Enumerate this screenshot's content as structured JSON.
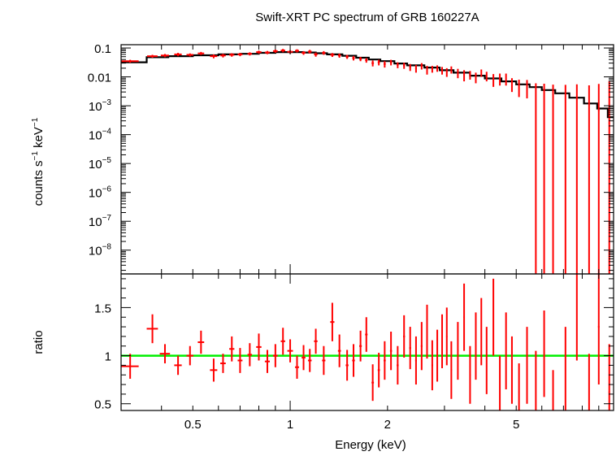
{
  "chart_data": [
    {
      "type": "scatter",
      "panel": "spectrum",
      "title": "Swift-XRT PC spectrum of GRB 160227A",
      "xlabel": "",
      "ylabel_parts": [
        "counts s",
        "−1",
        " keV",
        "−1"
      ],
      "xscale": "log",
      "yscale": "log",
      "xlim": [
        0.3,
        10.0
      ],
      "ylim": [
        1.5e-09,
        0.13
      ],
      "x_ticks": [
        0.5,
        1,
        2,
        5
      ],
      "y_tick_labels": [
        {
          "value": 0.1,
          "mantissa": "0.1",
          "exp": ""
        },
        {
          "value": 0.01,
          "mantissa": "0.01",
          "exp": ""
        },
        {
          "value": 0.001,
          "mantissa": "10",
          "exp": "−3"
        },
        {
          "value": 0.0001,
          "mantissa": "10",
          "exp": "−4"
        },
        {
          "value": 1e-05,
          "mantissa": "10",
          "exp": "−5"
        },
        {
          "value": 1e-06,
          "mantissa": "10",
          "exp": "−6"
        },
        {
          "value": 1e-07,
          "mantissa": "10",
          "exp": "−7"
        },
        {
          "value": 1e-08,
          "mantissa": "10",
          "exp": "−8"
        }
      ],
      "series": [
        {
          "kind": "data",
          "color": "#ff0000",
          "points": [
            [
              0.32,
              0.035,
              0.02,
              0.004
            ],
            [
              0.375,
              0.052,
              0.014,
              0.006
            ],
            [
              0.41,
              0.055,
              0.012,
              0.007
            ],
            [
              0.45,
              0.06,
              0.012,
              0.008
            ],
            [
              0.49,
              0.058,
              0.012,
              0.007
            ],
            [
              0.53,
              0.065,
              0.012,
              0.008
            ],
            [
              0.58,
              0.052,
              0.015,
              0.008
            ],
            [
              0.62,
              0.055,
              0.012,
              0.008
            ],
            [
              0.66,
              0.058,
              0.012,
              0.008
            ],
            [
              0.7,
              0.06,
              0.012,
              0.008
            ],
            [
              0.75,
              0.063,
              0.012,
              0.008
            ],
            [
              0.8,
              0.072,
              0.015,
              0.009
            ],
            [
              0.85,
              0.07,
              0.015,
              0.009
            ],
            [
              0.9,
              0.078,
              0.015,
              0.01
            ],
            [
              0.95,
              0.082,
              0.015,
              0.011
            ],
            [
              1.0,
              0.074,
              0.02,
              0.01
            ],
            [
              1.05,
              0.08,
              0.015,
              0.01
            ],
            [
              1.1,
              0.068,
              0.015,
              0.01
            ],
            [
              1.15,
              0.075,
              0.015,
              0.011
            ],
            [
              1.2,
              0.06,
              0.015,
              0.01
            ],
            [
              1.27,
              0.068,
              0.015,
              0.01
            ],
            [
              1.35,
              0.058,
              0.02,
              0.009
            ],
            [
              1.42,
              0.055,
              0.015,
              0.009
            ],
            [
              1.5,
              0.05,
              0.015,
              0.008
            ],
            [
              1.57,
              0.045,
              0.015,
              0.008
            ],
            [
              1.65,
              0.042,
              0.015,
              0.007
            ],
            [
              1.72,
              0.038,
              0.015,
              0.007
            ],
            [
              1.8,
              0.03,
              0.015,
              0.007
            ],
            [
              1.88,
              0.032,
              0.015,
              0.007
            ],
            [
              1.96,
              0.028,
              0.015,
              0.007
            ],
            [
              2.05,
              0.032,
              0.015,
              0.007
            ],
            [
              2.15,
              0.026,
              0.015,
              0.006
            ],
            [
              2.25,
              0.025,
              0.015,
              0.006
            ],
            [
              2.35,
              0.022,
              0.015,
              0.006
            ],
            [
              2.45,
              0.02,
              0.015,
              0.006
            ],
            [
              2.55,
              0.024,
              0.015,
              0.006
            ],
            [
              2.65,
              0.018,
              0.015,
              0.006
            ],
            [
              2.75,
              0.019,
              0.015,
              0.005
            ],
            [
              2.85,
              0.02,
              0.015,
              0.005
            ],
            [
              2.95,
              0.017,
              0.015,
              0.005
            ],
            [
              3.05,
              0.015,
              0.015,
              0.005
            ],
            [
              3.15,
              0.018,
              0.015,
              0.005
            ],
            [
              3.3,
              0.014,
              0.015,
              0.005
            ],
            [
              3.45,
              0.012,
              0.015,
              0.005
            ],
            [
              3.6,
              0.012,
              0.015,
              0.004
            ],
            [
              3.75,
              0.01,
              0.02,
              0.004
            ],
            [
              3.9,
              0.014,
              0.015,
              0.004
            ],
            [
              4.05,
              0.011,
              0.015,
              0.004
            ],
            [
              4.25,
              0.0085,
              0.015,
              0.004
            ],
            [
              4.45,
              0.009,
              0.015,
              0.004
            ],
            [
              4.65,
              0.009,
              0.015,
              0.004
            ],
            [
              4.85,
              0.006,
              0.02,
              0.003
            ],
            [
              5.1,
              0.005,
              0.02,
              0.003
            ],
            [
              5.4,
              0.0048,
              0.02,
              0.003
            ],
            [
              5.75,
              0.003,
              0.02,
              0.003
            ],
            [
              6.1,
              0.0028,
              0.02,
              0.003
            ],
            [
              6.5,
              0.0024,
              0.03,
              0.003
            ],
            [
              7.1,
              0.0013,
              0.03,
              0.004
            ],
            [
              7.7,
              0.0015,
              0.03,
              0.004
            ],
            [
              8.4,
              0.0011,
              0.03,
              0.004
            ],
            [
              9.0,
              0.0007,
              0.05,
              0.005
            ],
            [
              9.7,
              0.00025,
              0.05,
              0.007
            ]
          ]
        },
        {
          "kind": "model",
          "color": "#000000",
          "steps": [
            [
              0.3,
              0.032
            ],
            [
              0.36,
              0.048
            ],
            [
              0.42,
              0.052
            ],
            [
              0.5,
              0.056
            ],
            [
              0.6,
              0.06
            ],
            [
              0.7,
              0.063
            ],
            [
              0.8,
              0.068
            ],
            [
              0.9,
              0.072
            ],
            [
              1.0,
              0.072
            ],
            [
              1.1,
              0.07
            ],
            [
              1.2,
              0.066
            ],
            [
              1.3,
              0.06
            ],
            [
              1.45,
              0.054
            ],
            [
              1.6,
              0.046
            ],
            [
              1.75,
              0.04
            ],
            [
              1.9,
              0.035
            ],
            [
              2.1,
              0.029
            ],
            [
              2.3,
              0.025
            ],
            [
              2.6,
              0.021
            ],
            [
              2.9,
              0.017
            ],
            [
              3.2,
              0.014
            ],
            [
              3.6,
              0.011
            ],
            [
              4.0,
              0.0088
            ],
            [
              4.5,
              0.007
            ],
            [
              5.0,
              0.0055
            ],
            [
              5.5,
              0.0044
            ],
            [
              6.0,
              0.0035
            ],
            [
              6.6,
              0.0027
            ],
            [
              7.3,
              0.0019
            ],
            [
              8.1,
              0.0012
            ],
            [
              8.9,
              0.0008
            ],
            [
              9.6,
              0.0004
            ],
            [
              10.0,
              0.0004
            ]
          ]
        }
      ]
    },
    {
      "type": "scatter",
      "panel": "ratio",
      "title": "",
      "xlabel": "Energy (keV)",
      "ylabel": "ratio",
      "xscale": "log",
      "yscale": "linear",
      "xlim": [
        0.3,
        10.0
      ],
      "ylim": [
        0.43,
        1.85
      ],
      "x_ticks": [
        0.5,
        1,
        2,
        5
      ],
      "x_tick_labels": [
        "0.5",
        "1",
        "2",
        "5"
      ],
      "y_ticks": [
        0.5,
        1,
        1.5
      ],
      "y_tick_labels": [
        "0.5",
        "1",
        "1.5"
      ],
      "reference_line": {
        "y": 1,
        "color": "#00ee00"
      },
      "series": [
        {
          "kind": "data",
          "color": "#ff0000",
          "points": [
            [
              0.32,
              0.89,
              0.02,
              0.13
            ],
            [
              0.375,
              1.28,
              0.015,
              0.15
            ],
            [
              0.41,
              1.02,
              0.015,
              0.1
            ],
            [
              0.45,
              0.9,
              0.012,
              0.1
            ],
            [
              0.49,
              1.0,
              0.012,
              0.1
            ],
            [
              0.53,
              1.14,
              0.012,
              0.12
            ],
            [
              0.58,
              0.85,
              0.015,
              0.12
            ],
            [
              0.62,
              0.92,
              0.012,
              0.1
            ],
            [
              0.66,
              1.07,
              0.012,
              0.13
            ],
            [
              0.7,
              0.95,
              0.012,
              0.13
            ],
            [
              0.75,
              1.01,
              0.012,
              0.12
            ],
            [
              0.8,
              1.09,
              0.015,
              0.14
            ],
            [
              0.85,
              0.94,
              0.015,
              0.12
            ],
            [
              0.9,
              1.0,
              0.015,
              0.12
            ],
            [
              0.95,
              1.15,
              0.015,
              0.14
            ],
            [
              1.0,
              1.05,
              0.02,
              0.12
            ],
            [
              1.05,
              0.88,
              0.015,
              0.12
            ],
            [
              1.1,
              0.98,
              0.015,
              0.13
            ],
            [
              1.15,
              0.95,
              0.015,
              0.12
            ],
            [
              1.2,
              1.15,
              0.015,
              0.13
            ],
            [
              1.27,
              0.95,
              0.015,
              0.15
            ],
            [
              1.35,
              1.35,
              0.02,
              0.2
            ],
            [
              1.42,
              1.05,
              0.015,
              0.17
            ],
            [
              1.5,
              0.9,
              0.015,
              0.16
            ],
            [
              1.57,
              0.95,
              0.015,
              0.17
            ],
            [
              1.65,
              1.1,
              0.015,
              0.16
            ],
            [
              1.72,
              1.22,
              0.015,
              0.18
            ],
            [
              1.8,
              0.72,
              0.015,
              0.19
            ],
            [
              1.88,
              0.85,
              0.015,
              0.18
            ],
            [
              1.96,
              0.95,
              0.015,
              0.2
            ],
            [
              2.05,
              1.05,
              0.015,
              0.2
            ],
            [
              2.15,
              0.9,
              0.015,
              0.2
            ],
            [
              2.25,
              1.2,
              0.015,
              0.22
            ],
            [
              2.35,
              1.08,
              0.015,
              0.22
            ],
            [
              2.45,
              0.95,
              0.015,
              0.25
            ],
            [
              2.55,
              1.1,
              0.015,
              0.25
            ],
            [
              2.65,
              1.25,
              0.015,
              0.28
            ],
            [
              2.75,
              0.9,
              0.015,
              0.26
            ],
            [
              2.85,
              1.0,
              0.015,
              0.27
            ],
            [
              2.95,
              1.15,
              0.015,
              0.28
            ],
            [
              3.05,
              1.2,
              0.015,
              0.3
            ],
            [
              3.15,
              0.85,
              0.015,
              0.3
            ],
            [
              3.3,
              1.05,
              0.015,
              0.3
            ],
            [
              3.45,
              1.4,
              0.015,
              0.35
            ],
            [
              3.6,
              0.8,
              0.015,
              0.3
            ],
            [
              3.75,
              1.1,
              0.02,
              0.35
            ],
            [
              3.9,
              1.25,
              0.015,
              0.35
            ],
            [
              4.05,
              0.95,
              0.015,
              0.35
            ],
            [
              4.25,
              1.4,
              0.015,
              0.4
            ],
            [
              4.45,
              0.7,
              0.015,
              0.3
            ],
            [
              4.65,
              1.05,
              0.015,
              0.4
            ],
            [
              4.85,
              0.85,
              0.02,
              0.35
            ],
            [
              5.1,
              0.62,
              0.02,
              0.3
            ],
            [
              5.4,
              0.9,
              0.02,
              0.4
            ],
            [
              5.75,
              0.7,
              0.02,
              0.35
            ],
            [
              6.1,
              1.02,
              0.02,
              0.45
            ],
            [
              6.5,
              0.55,
              0.03,
              0.3
            ],
            [
              7.1,
              0.85,
              0.03,
              0.45
            ],
            [
              7.7,
              1.5,
              0.03,
              0.55
            ],
            [
              8.4,
              0.62,
              0.03,
              0.4
            ],
            [
              9.0,
              1.3,
              0.05,
              0.6
            ],
            [
              9.7,
              0.62,
              0.05,
              0.5
            ]
          ]
        }
      ]
    }
  ]
}
